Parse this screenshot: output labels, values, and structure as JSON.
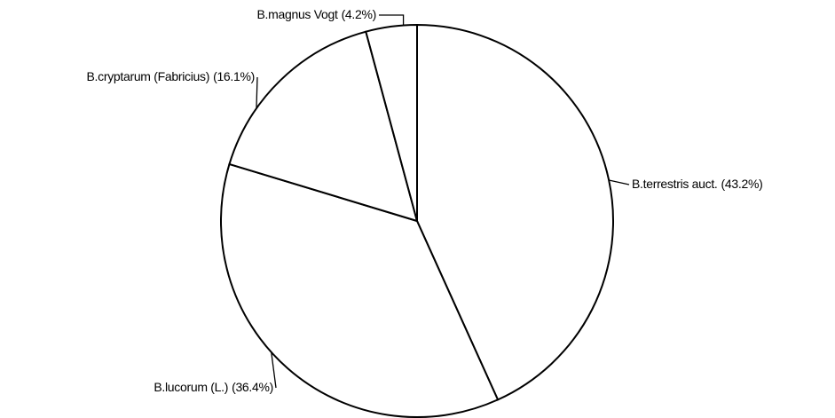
{
  "chart_data": {
    "type": "pie",
    "categories": [
      "B.terrestris auct.",
      "B.lucorum (L.)",
      "B.cryptarum (Fabricius)",
      "B.magnus Vogt"
    ],
    "values": [
      43.2,
      36.4,
      16.1,
      4.2
    ],
    "value_labels": [
      "(43.2%)",
      "(36.4%)",
      "(16.1%)",
      "(4.2%)"
    ],
    "color": "#ffffff"
  }
}
